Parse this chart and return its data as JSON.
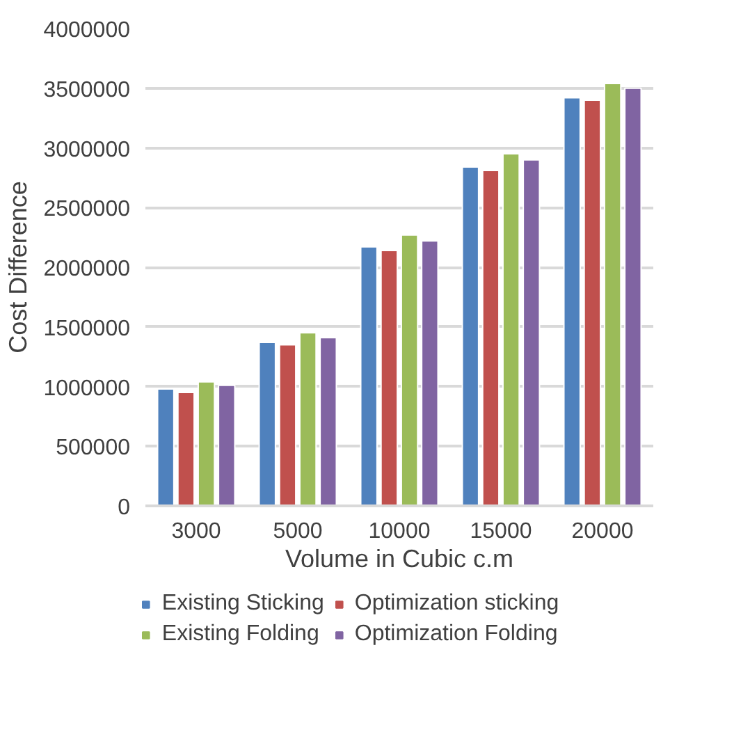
{
  "chart_data": {
    "type": "bar",
    "xlabel": "Volume in Cubic c.m",
    "ylabel": "Cost Difference",
    "categories": [
      "3000",
      "5000",
      "10000",
      "15000",
      "20000"
    ],
    "series": [
      {
        "name": "Existing Sticking",
        "color": "#4f81bd",
        "values": [
          980000,
          1370000,
          2170000,
          2840000,
          3420000
        ]
      },
      {
        "name": "Optimization sticking",
        "color": "#c0504d",
        "values": [
          950000,
          1350000,
          2140000,
          2810000,
          3400000
        ]
      },
      {
        "name": "Existing Folding",
        "color": "#9bbb59",
        "values": [
          1040000,
          1450000,
          2270000,
          2950000,
          3540000
        ]
      },
      {
        "name": "Optimization Folding",
        "color": "#8064a2",
        "values": [
          1010000,
          1410000,
          2220000,
          2900000,
          3500000
        ]
      }
    ],
    "ylim": [
      0,
      4000000
    ],
    "yticks": [
      0,
      500000,
      1000000,
      1500000,
      2000000,
      2500000,
      3000000,
      3500000,
      4000000
    ],
    "grid": "y",
    "legend": "bottom"
  }
}
